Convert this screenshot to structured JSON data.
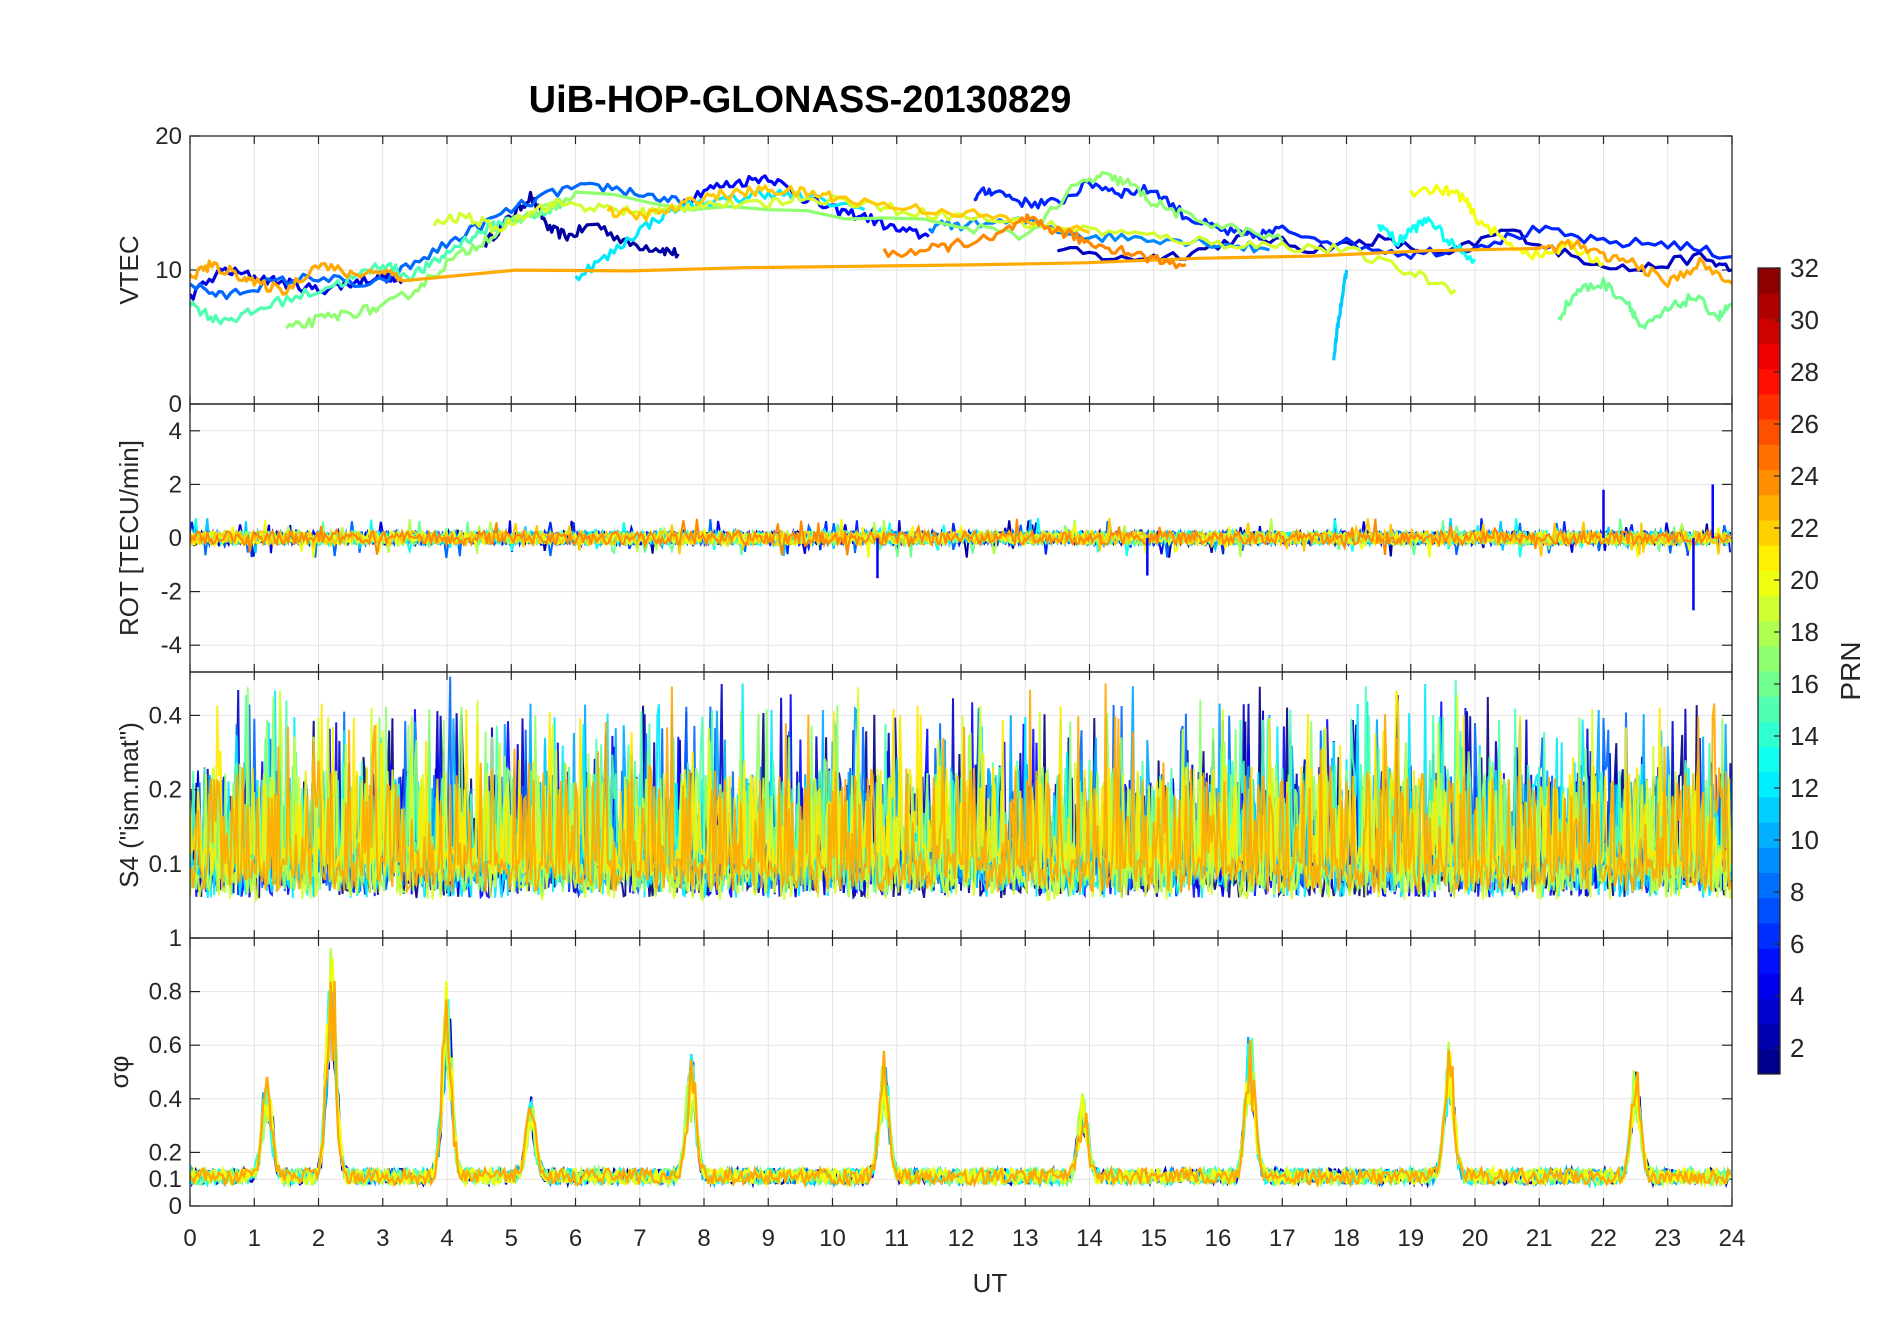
{
  "chart_data": {
    "type": "line",
    "title": "UiB-HOP-GLONASS-20130829",
    "xlabel": "UT",
    "xlim": [
      0,
      24
    ],
    "x_ticks": [
      "0",
      "1",
      "2",
      "3",
      "4",
      "5",
      "6",
      "7",
      "8",
      "9",
      "10",
      "11",
      "12",
      "13",
      "14",
      "15",
      "16",
      "17",
      "18",
      "19",
      "20",
      "21",
      "22",
      "23",
      "24"
    ],
    "panels": [
      {
        "id": "vtec",
        "ylabel": "VTEC",
        "ylim": [
          0,
          20
        ],
        "y_ticks": [
          "0",
          "10",
          "20"
        ],
        "series": [
          {
            "prn": 2,
            "x": [
              4.6,
              5.0,
              5.3,
              5.6,
              5.9,
              6.3,
              6.8,
              7.3,
              7.6
            ],
            "y": [
              12,
              14,
              15.5,
              13,
              12.5,
              13.5,
              12,
              11.6,
              11.2
            ]
          },
          {
            "prn": 3,
            "x": [
              13.5,
              14.5,
              15.5,
              16.5,
              17.5,
              18.5,
              19.5,
              20.5,
              21.5,
              22.5,
              23.5,
              24
            ],
            "y": [
              11.5,
              10.8,
              11.2,
              12.6,
              11.5,
              12.3,
              11,
              13,
              11,
              10,
              11,
              10
            ]
          },
          {
            "prn": 4,
            "x": [
              0,
              0.5,
              1,
              1.5,
              2,
              2.5,
              3,
              3.3
            ],
            "y": [
              8,
              10,
              9.5,
              9,
              8.5,
              9,
              9.6,
              9
            ]
          },
          {
            "prn": 5,
            "x": [
              7.5,
              8,
              8.5,
              9,
              9.5,
              10,
              10.5,
              11,
              11.5
            ],
            "y": [
              14.5,
              16,
              16.5,
              17,
              15.5,
              14.5,
              14,
              13,
              12.5
            ]
          },
          {
            "prn": 6,
            "x": [
              12.2,
              12.5,
              13,
              13.5,
              14,
              14.5,
              15,
              15.5,
              16,
              16.5,
              17,
              18,
              19,
              20,
              21,
              22,
              23,
              24
            ],
            "y": [
              15.5,
              16,
              15,
              15,
              16.5,
              15.8,
              16,
              14,
              13,
              12.5,
              13,
              12,
              11.2,
              11.8,
              13,
              12,
              12,
              11
            ]
          },
          {
            "prn": 8,
            "x": [
              0,
              0.5,
              1.2,
              2,
              2.8,
              3.5,
              4.2,
              5,
              5.8,
              6.5,
              7.2,
              7.8
            ],
            "y": [
              9,
              8,
              9,
              9.5,
              8.7,
              10.5,
              12.5,
              14.5,
              16,
              16.2,
              15.5,
              14.8
            ]
          },
          {
            "prn": 9,
            "x": [
              11.5,
              12,
              13,
              14,
              15,
              16,
              16.8
            ],
            "y": [
              13.2,
              13.4,
              13.6,
              12.5,
              12.4,
              12,
              11.5
            ]
          },
          {
            "prn": 11,
            "x": [
              17.8,
              17.9,
              18.0
            ],
            "y": [
              3.5,
              7,
              10
            ]
          },
          {
            "prn": 12,
            "x": [
              6,
              6.5,
              7,
              7.5,
              8,
              8.5,
              9,
              9.6,
              10.5
            ],
            "y": [
              9.5,
              11,
              13,
              14.5,
              15,
              15.3,
              15.8,
              15.4,
              14.5
            ]
          },
          {
            "prn": 13,
            "x": [
              18.5,
              18.8,
              19.0,
              19.3,
              19.6,
              20.0
            ],
            "y": [
              13.5,
              12,
              13,
              13.8,
              12,
              10.8
            ]
          },
          {
            "prn": 15,
            "x": [
              0,
              0.4,
              0.8,
              1.3,
              2,
              2.6,
              3,
              3.4,
              3.8,
              4.2,
              4.6,
              5.0,
              5.4,
              5.8
            ],
            "y": [
              7.5,
              6.3,
              6.5,
              7.5,
              8.5,
              9.5,
              10.5,
              9.5,
              10.5,
              12,
              13,
              13.8,
              14,
              15
            ]
          },
          {
            "prn": 16,
            "x": [
              21.3,
              21.6,
              22,
              22.4,
              22.6,
              23,
              23.4,
              23.8,
              24
            ],
            "y": [
              6.5,
              8.5,
              9,
              7.5,
              5.5,
              7,
              8,
              6.5,
              7.5
            ]
          },
          {
            "prn": 17,
            "x": [
              1.5,
              2,
              2.5,
              3,
              3.5,
              4,
              4.5,
              5,
              5.5,
              6,
              12,
              13,
              13.8,
              14.2,
              14.6,
              15,
              15.5,
              16.3,
              17
            ],
            "y": [
              5.5,
              6.3,
              6.8,
              7.2,
              8.5,
              10.5,
              12,
              13.5,
              14.5,
              15.5,
              13.3,
              12.5,
              16.3,
              17,
              16.5,
              15,
              14,
              13,
              12.2
            ]
          },
          {
            "prn": 19,
            "x": [
              3.8,
              4.3,
              4.8,
              5.3,
              5.8,
              6.5,
              7,
              7.5,
              8,
              8.8,
              9.5,
              10.5,
              11,
              12,
              13,
              14,
              15,
              16,
              17,
              18,
              19,
              19.7
            ],
            "y": [
              13.5,
              14,
              13,
              14.5,
              15,
              14.5,
              14.3,
              14.5,
              15,
              14.8,
              15.5,
              15,
              14.5,
              14,
              13.5,
              13,
              12.5,
              12,
              11.8,
              11.5,
              9.8,
              8.5
            ]
          },
          {
            "prn": 20,
            "x": [
              19,
              19.5,
              19.8,
              20,
              20.5,
              21,
              21.5,
              22
            ],
            "y": [
              15.9,
              16,
              15.5,
              14,
              12,
              11,
              11.8,
              10.5
            ]
          },
          {
            "prn": 22,
            "x": [
              6.5,
              7,
              7.5,
              8,
              8.5,
              9,
              9.5,
              10,
              11,
              12,
              13,
              14
            ],
            "y": [
              14.4,
              14,
              14.5,
              15.5,
              15.7,
              16,
              15.8,
              15.5,
              14.7,
              14.3,
              13.5,
              12.8
            ]
          },
          {
            "prn": 23,
            "x": [
              0,
              0.3,
              0.7,
              1.0,
              1.5,
              2,
              2.5,
              3,
              3.3,
              21,
              21.5,
              22,
              22.5,
              23,
              23.5,
              24
            ],
            "y": [
              9.5,
              10.3,
              9.8,
              9,
              8.5,
              10.5,
              9.6,
              10,
              9.5,
              11.5,
              12,
              11,
              10.5,
              9,
              10.5,
              9
            ]
          },
          {
            "prn": 24,
            "x": [
              10.8,
              11.5,
              12,
              12.5,
              13,
              13.3,
              13.6,
              14,
              14.5,
              15,
              15.5
            ],
            "y": [
              11.2,
              11.5,
              12,
              12.3,
              13.8,
              13.2,
              12.8,
              12,
              11.5,
              10.8,
              10.4
            ]
          }
        ]
      },
      {
        "id": "rot",
        "ylabel": "ROT [TECU/min]",
        "ylim": [
          -5,
          5
        ],
        "y_ticks": [
          "-4",
          "-2",
          "0",
          "2",
          "4"
        ],
        "noise": {
          "amplitude": 0.25,
          "spikes": [
            {
              "x": 10.7,
              "y": -1.5
            },
            {
              "x": 22.0,
              "y": 1.8
            },
            {
              "x": 23.4,
              "y": -2.7
            },
            {
              "x": 23.7,
              "y": 2.0
            },
            {
              "x": 14.9,
              "y": -1.4
            }
          ]
        }
      },
      {
        "id": "s4",
        "ylabel": "S4 (\"ism.mat\")",
        "ylim": [
          0.05,
          0.6
        ],
        "y_ticks": [
          "0.1",
          "0.2",
          "0.4"
        ],
        "y_scale": "log"
      },
      {
        "id": "sigma_phi",
        "ylabel": "σφ",
        "ylim": [
          0,
          1
        ],
        "y_ticks": [
          "0",
          "0.1",
          "0.2",
          "0.4",
          "0.6",
          "0.8",
          "1"
        ],
        "peaks": [
          {
            "x": 1.2,
            "y": 0.5
          },
          {
            "x": 2.2,
            "y": 1.0
          },
          {
            "x": 4.0,
            "y": 0.85
          },
          {
            "x": 5.3,
            "y": 0.4
          },
          {
            "x": 7.8,
            "y": 0.55
          },
          {
            "x": 10.8,
            "y": 0.55
          },
          {
            "x": 13.9,
            "y": 0.42
          },
          {
            "x": 16.5,
            "y": 0.65
          },
          {
            "x": 19.6,
            "y": 0.62
          },
          {
            "x": 22.5,
            "y": 0.5
          }
        ]
      }
    ],
    "colorbar": {
      "label": "PRN",
      "range": [
        1,
        32
      ],
      "ticks": [
        "2",
        "4",
        "6",
        "8",
        "10",
        "12",
        "14",
        "16",
        "18",
        "20",
        "22",
        "24",
        "26",
        "28",
        "30",
        "32"
      ],
      "colormap": "jet"
    }
  }
}
